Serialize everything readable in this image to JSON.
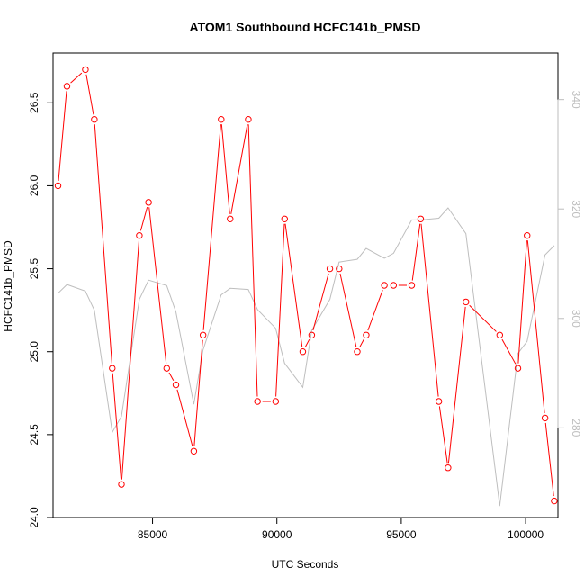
{
  "chart_data": {
    "type": "line",
    "title": "ATOM1 Southbound HCFC141b_PMSD",
    "xlabel": "UTC Seconds",
    "ylabel": "HCFC141b_PMSD",
    "xlim": [
      81000,
      101300
    ],
    "ylim": [
      24.0,
      26.8
    ],
    "x_ticks": [
      85000,
      90000,
      95000,
      100000
    ],
    "y_ticks": [
      24.0,
      24.5,
      25.0,
      25.5,
      26.0,
      26.5
    ],
    "y_tick_labels": [
      "24.0",
      "24.5",
      "25.0",
      "25.5",
      "26.0",
      "26.5"
    ],
    "y2lim": [
      263.6,
      348.5
    ],
    "y2_ticks": [
      280,
      300,
      320,
      340
    ],
    "colors": {
      "primary": "#ff0000",
      "secondary": "#bebebe"
    },
    "series": [
      {
        "axis": "left",
        "color": "#ff0000",
        "markers": "open-circle",
        "x": [
          81200,
          81560,
          82300,
          82660,
          83380,
          83750,
          84470,
          84840,
          85570,
          85940,
          86660,
          87030,
          87760,
          88120,
          88850,
          89220,
          89950,
          90310,
          91040,
          91400,
          92130,
          92500,
          93230,
          93590,
          94320,
          94690,
          95420,
          95780,
          96510,
          96880,
          97600,
          98960,
          99690,
          100060,
          100780,
          101150
        ],
        "values": [
          26.0,
          26.6,
          26.7,
          26.4,
          24.9,
          24.2,
          25.7,
          25.9,
          24.9,
          24.8,
          24.4,
          25.1,
          26.4,
          25.8,
          26.4,
          24.7,
          24.7,
          25.8,
          25.0,
          25.1,
          25.5,
          25.5,
          25.0,
          25.1,
          25.4,
          25.4,
          25.4,
          25.8,
          24.7,
          24.3,
          25.3,
          25.1,
          24.9,
          25.7,
          24.6,
          24.1
        ]
      },
      {
        "axis": "right",
        "color": "#bebebe",
        "markers": "none",
        "x": [
          81200,
          81560,
          82300,
          82660,
          83380,
          83750,
          84470,
          84840,
          85570,
          85940,
          86660,
          87030,
          87760,
          88120,
          88850,
          89220,
          89950,
          90310,
          91040,
          91400,
          92130,
          92500,
          93230,
          93590,
          94320,
          94690,
          95420,
          95780,
          96510,
          96880,
          97600,
          98960,
          99690,
          100060,
          100780,
          101150
        ],
        "values": [
          304.6,
          306.2,
          305.0,
          301.5,
          279.2,
          282.1,
          303.5,
          307.0,
          306.0,
          301.2,
          284.3,
          294.2,
          304.3,
          305.5,
          305.3,
          301.6,
          298.2,
          291.8,
          287.4,
          297.8,
          303.5,
          310.3,
          310.8,
          312.8,
          311.0,
          311.9,
          318.0,
          318.0,
          318.3,
          320.2,
          315.5,
          265.7,
          293.6,
          295.8,
          311.6,
          313.3
        ]
      }
    ]
  }
}
